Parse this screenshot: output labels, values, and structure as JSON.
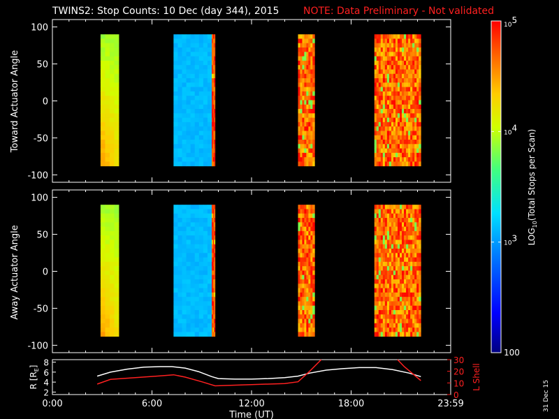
{
  "title": {
    "main": "TWINS2: Stop Counts: 10 Dec (day 344), 2015",
    "note": "NOTE: Data Preliminary - Not validated",
    "note_color": "#ff2020"
  },
  "stamp": "31 Dec 15",
  "colorbar": {
    "label": "LOG10(Total Stops per Scan)",
    "label_prefix": "LOG",
    "label_sub": "10",
    "label_rest": "(Total Stops per Scan)",
    "ticks": [
      "100",
      "10^3",
      "10^4",
      "10^5"
    ],
    "range_log": [
      2,
      5
    ],
    "colormap": "rainbow (blue -> cyan -> green -> yellow -> red)"
  },
  "chart_data": [
    {
      "type": "heatmap",
      "name": "toward-panel",
      "ylabel": "Toward Actuator Angle",
      "ylim": [
        -110,
        110
      ],
      "yticks": [
        100,
        50,
        0,
        -50,
        -100
      ],
      "xlim": [
        0,
        24
      ],
      "y_data_range": [
        -88,
        90
      ],
      "intervals": [
        {
          "start": 2.9,
          "end": 4.0,
          "pattern": "smooth-gradient",
          "level_log": [
            3.6,
            4.6
          ]
        },
        {
          "start": 7.3,
          "end": 9.6,
          "pattern": "smooth",
          "level_log": [
            2.9,
            3.3
          ]
        },
        {
          "start": 9.6,
          "end": 9.8,
          "pattern": "noisy",
          "level_log": [
            4.0,
            5.0
          ]
        },
        {
          "start": 14.8,
          "end": 15.8,
          "pattern": "noisy",
          "level_log": [
            3.5,
            5.0
          ]
        },
        {
          "start": 19.4,
          "end": 22.2,
          "pattern": "noisy",
          "level_log": [
            3.5,
            5.0
          ]
        }
      ]
    },
    {
      "type": "heatmap",
      "name": "away-panel",
      "ylabel": "Away Actuator Angle",
      "ylim": [
        -110,
        110
      ],
      "yticks": [
        100,
        50,
        0,
        -50,
        -100
      ],
      "xlim": [
        0,
        24
      ],
      "y_data_range": [
        -88,
        90
      ],
      "intervals": [
        {
          "start": 2.9,
          "end": 4.0,
          "pattern": "smooth-gradient",
          "level_log": [
            3.6,
            4.6
          ]
        },
        {
          "start": 7.3,
          "end": 9.6,
          "pattern": "smooth",
          "level_log": [
            2.9,
            3.3
          ]
        },
        {
          "start": 9.6,
          "end": 9.8,
          "pattern": "noisy",
          "level_log": [
            4.0,
            5.0
          ]
        },
        {
          "start": 14.8,
          "end": 15.8,
          "pattern": "noisy",
          "level_log": [
            3.5,
            5.0
          ]
        },
        {
          "start": 19.4,
          "end": 22.2,
          "pattern": "noisy",
          "level_log": [
            3.5,
            5.0
          ]
        }
      ]
    },
    {
      "type": "line",
      "name": "orbit-panel",
      "xlabel": "Time (UT)",
      "xlim": [
        0,
        24
      ],
      "xticks": [
        "0:00",
        "6:00",
        "12:00",
        "18:00",
        "23:59"
      ],
      "left_axis": {
        "ylabel": "R [RE]",
        "ylabel_main": "R [R",
        "ylabel_sub": "E",
        "ylabel_end": "]",
        "ylim": [
          1.5,
          8.5
        ],
        "yticks": [
          2,
          4,
          6,
          8
        ],
        "color": "#ffffff"
      },
      "right_axis": {
        "ylabel": "L Shell",
        "ylim": [
          0,
          30
        ],
        "yticks": [
          0,
          10,
          20,
          30
        ],
        "color": "#ff2020"
      },
      "series": [
        {
          "axis": "left",
          "color": "#ffffff",
          "x": [
            2.7,
            3.5,
            4.5,
            5.5,
            6.5,
            7.2,
            8.0,
            8.8,
            9.6,
            10.0,
            11.0,
            12.0,
            13.0,
            14.0,
            14.8,
            15.5,
            16.5,
            17.5,
            18.5,
            19.5,
            20.5,
            21.5,
            22.2
          ],
          "y": [
            5.2,
            6.0,
            6.6,
            7.0,
            7.1,
            7.1,
            6.8,
            6.1,
            5.1,
            4.7,
            4.6,
            4.6,
            4.7,
            4.9,
            5.2,
            5.8,
            6.4,
            6.7,
            6.9,
            6.9,
            6.5,
            5.8,
            5.1
          ]
        },
        {
          "axis": "right",
          "color": "#ff2020",
          "x": [
            2.7,
            3.5,
            5.0,
            6.5,
            7.3,
            8.0,
            9.0,
            9.8,
            12.0,
            14.0,
            14.8,
            15.5,
            16.2
          ],
          "y": [
            9,
            13,
            14.5,
            16,
            17,
            15,
            11,
            7.5,
            8.5,
            9.5,
            11,
            20,
            31
          ]
        },
        {
          "axis": "right",
          "color": "#ff2020",
          "x": [
            20.8,
            21.2,
            22.2
          ],
          "y": [
            31,
            24,
            12
          ]
        }
      ]
    }
  ]
}
